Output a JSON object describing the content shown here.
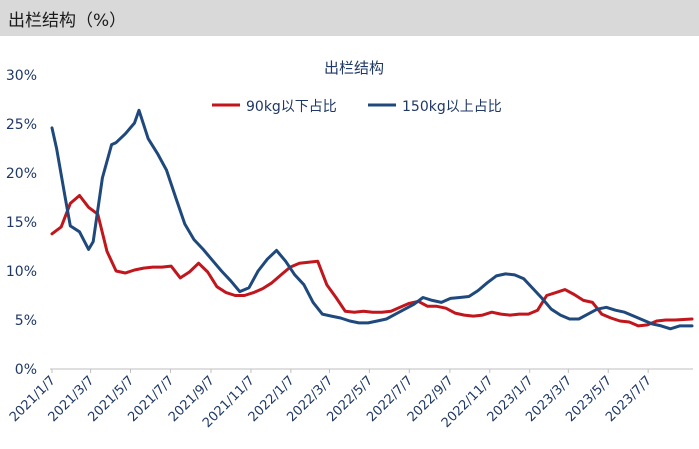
{
  "header": {
    "title": "出栏结构（%）"
  },
  "chart_data": {
    "type": "line",
    "title": "出栏结构",
    "xlabel": "",
    "ylabel": "",
    "ylim": [
      0,
      30
    ],
    "yticks": [
      "0%",
      "5%",
      "10%",
      "15%",
      "20%",
      "25%",
      "30%"
    ],
    "xlim": [
      "2021-01-07",
      "2023-09-12"
    ],
    "xtick_dates": [
      "2021-01-07",
      "2021-03-07",
      "2021-05-07",
      "2021-07-07",
      "2021-09-07",
      "2021-11-07",
      "2022-01-07",
      "2022-03-07",
      "2022-05-07",
      "2022-07-07",
      "2022-09-07",
      "2022-11-07",
      "2023-01-07",
      "2023-03-07",
      "2023-05-07",
      "2023-07-07"
    ],
    "xtick_labels": [
      "2021/1/7",
      "2021/3/7",
      "2021/5/7",
      "2021/7/7",
      "2021/9/7",
      "2021/11/7",
      "2022/1/7",
      "2022/3/7",
      "2022/5/7",
      "2022/7/7",
      "2022/9/7",
      "2022/11/7",
      "2023/1/7",
      "2023/3/7",
      "2023/5/7",
      "2023/7/7"
    ],
    "grid": false,
    "legend_position": "top-center",
    "series": [
      {
        "name": "90kg以下占比",
        "color": "#c0161c",
        "points": [
          [
            "2021-01-07",
            13.8
          ],
          [
            "2021-01-21",
            14.5
          ],
          [
            "2021-02-04",
            16.9
          ],
          [
            "2021-02-18",
            17.7
          ],
          [
            "2021-03-04",
            16.5
          ],
          [
            "2021-03-18",
            15.8
          ],
          [
            "2021-04-01",
            12.0
          ],
          [
            "2021-04-15",
            10.0
          ],
          [
            "2021-04-29",
            9.8
          ],
          [
            "2021-05-13",
            10.1
          ],
          [
            "2021-05-27",
            10.3
          ],
          [
            "2021-06-10",
            10.4
          ],
          [
            "2021-06-24",
            10.4
          ],
          [
            "2021-07-08",
            10.5
          ],
          [
            "2021-07-22",
            9.3
          ],
          [
            "2021-08-05",
            9.9
          ],
          [
            "2021-08-19",
            10.8
          ],
          [
            "2021-09-02",
            9.9
          ],
          [
            "2021-09-16",
            8.4
          ],
          [
            "2021-09-30",
            7.8
          ],
          [
            "2021-10-14",
            7.5
          ],
          [
            "2021-10-28",
            7.5
          ],
          [
            "2021-11-11",
            7.8
          ],
          [
            "2021-11-25",
            8.2
          ],
          [
            "2021-12-09",
            8.8
          ],
          [
            "2021-12-23",
            9.6
          ],
          [
            "2022-01-06",
            10.4
          ],
          [
            "2022-01-20",
            10.8
          ],
          [
            "2022-02-03",
            10.9
          ],
          [
            "2022-02-17",
            11.0
          ],
          [
            "2022-03-03",
            8.6
          ],
          [
            "2022-03-17",
            7.3
          ],
          [
            "2022-03-31",
            5.9
          ],
          [
            "2022-04-14",
            5.8
          ],
          [
            "2022-04-28",
            5.9
          ],
          [
            "2022-05-12",
            5.8
          ],
          [
            "2022-05-26",
            5.8
          ],
          [
            "2022-06-09",
            5.9
          ],
          [
            "2022-06-23",
            6.3
          ],
          [
            "2022-07-07",
            6.7
          ],
          [
            "2022-07-21",
            6.9
          ],
          [
            "2022-08-04",
            6.4
          ],
          [
            "2022-08-18",
            6.4
          ],
          [
            "2022-09-01",
            6.2
          ],
          [
            "2022-09-15",
            5.7
          ],
          [
            "2022-09-29",
            5.5
          ],
          [
            "2022-10-13",
            5.4
          ],
          [
            "2022-10-27",
            5.5
          ],
          [
            "2022-11-10",
            5.8
          ],
          [
            "2022-11-24",
            5.6
          ],
          [
            "2022-12-08",
            5.5
          ],
          [
            "2022-12-22",
            5.6
          ],
          [
            "2023-01-05",
            5.6
          ],
          [
            "2023-01-19",
            6.0
          ],
          [
            "2023-02-02",
            7.5
          ],
          [
            "2023-02-16",
            7.8
          ],
          [
            "2023-03-02",
            8.1
          ],
          [
            "2023-03-16",
            7.6
          ],
          [
            "2023-03-30",
            7.0
          ],
          [
            "2023-04-13",
            6.8
          ],
          [
            "2023-04-27",
            5.6
          ],
          [
            "2023-05-11",
            5.2
          ],
          [
            "2023-05-25",
            4.9
          ],
          [
            "2023-06-08",
            4.8
          ],
          [
            "2023-06-22",
            4.4
          ],
          [
            "2023-07-06",
            4.5
          ],
          [
            "2023-07-20",
            4.9
          ],
          [
            "2023-08-03",
            5.0
          ],
          [
            "2023-08-17",
            5.0
          ],
          [
            "2023-09-12",
            5.1
          ]
        ]
      },
      {
        "name": "150kg以上占比",
        "color": "#1f497d",
        "points": [
          [
            "2021-01-07",
            24.6
          ],
          [
            "2021-01-14",
            22.5
          ],
          [
            "2021-01-28",
            17.2
          ],
          [
            "2021-02-04",
            14.6
          ],
          [
            "2021-02-18",
            14.0
          ],
          [
            "2021-03-04",
            12.2
          ],
          [
            "2021-03-11",
            13.0
          ],
          [
            "2021-03-25",
            19.5
          ],
          [
            "2021-04-08",
            22.9
          ],
          [
            "2021-04-15",
            23.1
          ],
          [
            "2021-04-29",
            24.0
          ],
          [
            "2021-05-13",
            25.1
          ],
          [
            "2021-05-20",
            26.4
          ],
          [
            "2021-06-03",
            23.5
          ],
          [
            "2021-06-17",
            22.0
          ],
          [
            "2021-07-01",
            20.3
          ],
          [
            "2021-07-15",
            17.5
          ],
          [
            "2021-07-29",
            14.8
          ],
          [
            "2021-08-12",
            13.2
          ],
          [
            "2021-08-26",
            12.2
          ],
          [
            "2021-09-09",
            11.1
          ],
          [
            "2021-09-23",
            10.0
          ],
          [
            "2021-10-07",
            9.0
          ],
          [
            "2021-10-21",
            7.9
          ],
          [
            "2021-11-04",
            8.3
          ],
          [
            "2021-11-18",
            10.0
          ],
          [
            "2021-12-02",
            11.2
          ],
          [
            "2021-12-16",
            12.1
          ],
          [
            "2021-12-30",
            11.0
          ],
          [
            "2022-01-13",
            9.6
          ],
          [
            "2022-01-27",
            8.6
          ],
          [
            "2022-02-10",
            6.8
          ],
          [
            "2022-02-24",
            5.6
          ],
          [
            "2022-03-10",
            5.4
          ],
          [
            "2022-03-24",
            5.2
          ],
          [
            "2022-04-07",
            4.9
          ],
          [
            "2022-04-21",
            4.7
          ],
          [
            "2022-05-05",
            4.7
          ],
          [
            "2022-05-19",
            4.9
          ],
          [
            "2022-06-02",
            5.1
          ],
          [
            "2022-06-16",
            5.6
          ],
          [
            "2022-06-30",
            6.1
          ],
          [
            "2022-07-14",
            6.6
          ],
          [
            "2022-07-28",
            7.3
          ],
          [
            "2022-08-11",
            7.0
          ],
          [
            "2022-08-25",
            6.8
          ],
          [
            "2022-09-08",
            7.2
          ],
          [
            "2022-09-22",
            7.3
          ],
          [
            "2022-10-06",
            7.4
          ],
          [
            "2022-10-20",
            8.0
          ],
          [
            "2022-11-03",
            8.8
          ],
          [
            "2022-11-17",
            9.5
          ],
          [
            "2022-12-01",
            9.7
          ],
          [
            "2022-12-15",
            9.6
          ],
          [
            "2022-12-29",
            9.2
          ],
          [
            "2023-01-12",
            8.2
          ],
          [
            "2023-01-26",
            7.2
          ],
          [
            "2023-02-09",
            6.1
          ],
          [
            "2023-02-23",
            5.5
          ],
          [
            "2023-03-09",
            5.1
          ],
          [
            "2023-03-23",
            5.1
          ],
          [
            "2023-04-06",
            5.6
          ],
          [
            "2023-04-20",
            6.1
          ],
          [
            "2023-05-04",
            6.3
          ],
          [
            "2023-05-18",
            6.0
          ],
          [
            "2023-06-01",
            5.8
          ],
          [
            "2023-06-15",
            5.4
          ],
          [
            "2023-06-29",
            5.0
          ],
          [
            "2023-07-13",
            4.6
          ],
          [
            "2023-07-27",
            4.4
          ],
          [
            "2023-08-10",
            4.1
          ],
          [
            "2023-08-24",
            4.4
          ],
          [
            "2023-09-12",
            4.4
          ]
        ]
      }
    ]
  }
}
